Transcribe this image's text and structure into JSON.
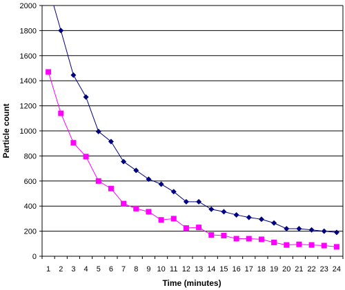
{
  "chart_data": {
    "type": "line",
    "xlabel": "Time (minutes)",
    "ylabel": "Particle count",
    "ylim": [
      0,
      2000
    ],
    "y_ticks": [
      0,
      200,
      400,
      600,
      800,
      1000,
      1200,
      1400,
      1600,
      1800,
      2000
    ],
    "grid": "horizontal",
    "legend": "none",
    "categories": [
      "1",
      "2",
      "3",
      "4",
      "5",
      "6",
      "7",
      "8",
      "9",
      "10",
      "11",
      "12",
      "13",
      "14",
      "15",
      "16",
      "17",
      "18",
      "19",
      "20",
      "21",
      "22",
      "23",
      "24"
    ],
    "series": [
      {
        "color": "#000080",
        "marker": "diamond",
        "values": [
          2150,
          1800,
          1445,
          1270,
          995,
          915,
          755,
          685,
          615,
          575,
          515,
          435,
          435,
          375,
          355,
          330,
          310,
          295,
          265,
          220,
          220,
          210,
          200,
          190
        ]
      },
      {
        "color": "#ff00ff",
        "marker": "square",
        "values": [
          1470,
          1140,
          905,
          795,
          600,
          540,
          420,
          380,
          355,
          290,
          300,
          225,
          230,
          170,
          165,
          140,
          140,
          135,
          110,
          90,
          95,
          90,
          85,
          75
        ]
      }
    ]
  }
}
